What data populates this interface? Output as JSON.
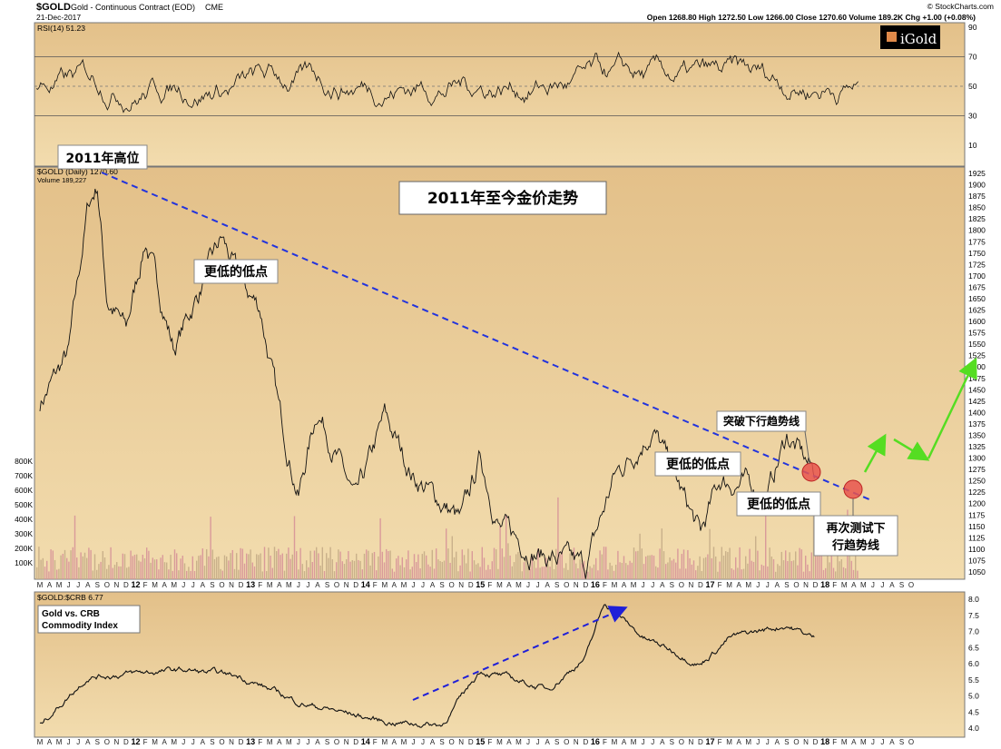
{
  "header": {
    "symbol": "$GOLD",
    "name": "Gold - Continuous Contract (EOD)",
    "exchange": "CME",
    "date": "21-Dec-2017",
    "watermark": "© StockCharts.com",
    "ohlc": "Open 1268.80  High 1272.50  Low 1266.00  Close 1270.60  Volume 189.2K  Chg +1.00 (+0.08%)",
    "logo_text": "iGold"
  },
  "rsi_panel": {
    "label": "RSI(14) 51.23",
    "ticks": [
      "90",
      "70",
      "50",
      "30",
      "10"
    ],
    "tick_values": [
      90,
      70,
      50,
      30,
      10
    ],
    "overbought": 70,
    "oversold": 30
  },
  "price_panel": {
    "label": "$GOLD (Daily) 1270.60",
    "volume_label": "Volume 189,227",
    "title": "2011年至今金价走势",
    "price_ticks": [
      1925,
      1900,
      1875,
      1850,
      1825,
      1800,
      1775,
      1750,
      1725,
      1700,
      1675,
      1650,
      1625,
      1600,
      1575,
      1550,
      1525,
      1500,
      1475,
      1450,
      1425,
      1400,
      1375,
      1350,
      1325,
      1300,
      1275,
      1250,
      1225,
      1200,
      1175,
      1150,
      1125,
      1100,
      1075,
      1050
    ],
    "price_ticks_text": [
      "1925",
      "1900",
      "1875",
      "1850",
      "1825",
      "1800",
      "1775",
      "1750",
      "1725",
      "1700",
      "1675",
      "1650",
      "1625",
      "1600",
      "1575",
      "1550",
      "1525",
      "1500",
      "1475",
      "1450",
      "1425",
      "1400",
      "1375",
      "1350",
      "1325",
      "1300",
      "1275",
      "1250",
      "1225",
      "1200",
      "1175",
      "1150",
      "1125",
      "1100",
      "1075",
      "1050"
    ],
    "volume_ticks": [
      "800K",
      "700K",
      "600K",
      "500K",
      "400K",
      "300K",
      "200K",
      "100K"
    ],
    "volume_tick_values": [
      800,
      700,
      600,
      500,
      400,
      300,
      200,
      100
    ],
    "annotations": {
      "high_2011": "2011年高位",
      "lower_low_1": "更低的低点",
      "lower_low_2": "更低的低点",
      "lower_low_3": "更低的低点",
      "breakout": "突破下行趋势线",
      "retest_line1": "再次测试下",
      "retest_line2": "行趋势线"
    }
  },
  "ratio_panel": {
    "label": "$GOLD:$CRB 6.77",
    "box_line1": "Gold vs. CRB",
    "box_line2": "Commodity Index",
    "ticks": [
      "8.0",
      "7.5",
      "7.0",
      "6.5",
      "6.0",
      "5.5",
      "5.0",
      "4.5",
      "4.0"
    ],
    "tick_values": [
      8.0,
      7.5,
      7.0,
      6.5,
      6.0,
      5.5,
      5.0,
      4.5,
      4.0
    ]
  },
  "x_axis": {
    "months": [
      "M",
      "A",
      "M",
      "J",
      "J",
      "A",
      "S",
      "O",
      "N",
      "D",
      "12",
      "F",
      "M",
      "A",
      "M",
      "J",
      "J",
      "A",
      "S",
      "O",
      "N",
      "D",
      "13",
      "F",
      "M",
      "A",
      "M",
      "J",
      "J",
      "A",
      "S",
      "O",
      "N",
      "D",
      "14",
      "F",
      "M",
      "A",
      "M",
      "J",
      "J",
      "A",
      "S",
      "O",
      "N",
      "D",
      "15",
      "F",
      "M",
      "A",
      "M",
      "J",
      "J",
      "A",
      "S",
      "O",
      "N",
      "D",
      "16",
      "F",
      "M",
      "A",
      "M",
      "J",
      "J",
      "A",
      "S",
      "O",
      "N",
      "D",
      "17",
      "F",
      "M",
      "A",
      "M",
      "J",
      "J",
      "A",
      "S",
      "O",
      "N",
      "D",
      "18",
      "F",
      "M",
      "A",
      "M",
      "J",
      "J",
      "A",
      "S",
      "O"
    ]
  },
  "chart_data": {
    "type": "line",
    "title": "2011年至今金价走势",
    "series": [
      {
        "name": "$GOLD",
        "x": [
          "2011-03",
          "2011-06",
          "2011-08",
          "2011-09",
          "2011-10",
          "2011-12",
          "2012-02",
          "2012-05",
          "2012-10",
          "2012-12",
          "2013-02",
          "2013-04",
          "2013-06",
          "2013-08",
          "2013-12",
          "2014-03",
          "2014-06",
          "2014-11",
          "2015-01",
          "2015-03",
          "2015-07",
          "2015-12",
          "2016-03",
          "2016-07",
          "2016-12",
          "2017-02",
          "2017-05",
          "2017-07",
          "2017-09",
          "2017-12"
        ],
        "values": [
          1420,
          1530,
          1850,
          1900,
          1650,
          1580,
          1780,
          1540,
          1780,
          1680,
          1630,
          1400,
          1220,
          1410,
          1200,
          1390,
          1260,
          1160,
          1300,
          1150,
          1090,
          1060,
          1260,
          1365,
          1130,
          1250,
          1240,
          1220,
          1350,
          1265
        ]
      },
      {
        "name": "$GOLD:$CRB",
        "x": [
          "2011-03",
          "2011-08",
          "2012-06",
          "2012-12",
          "2013-06",
          "2014-03",
          "2014-09",
          "2015-01",
          "2015-08",
          "2015-12",
          "2016-02",
          "2016-06",
          "2016-12",
          "2017-03",
          "2017-09",
          "2017-12"
        ],
        "values": [
          4.1,
          5.6,
          5.8,
          5.6,
          4.8,
          4.2,
          4.1,
          5.8,
          5.2,
          6.2,
          7.9,
          6.8,
          6.0,
          6.8,
          7.2,
          6.77
        ]
      }
    ],
    "trendline": {
      "start": [
        "2011-09",
        1900
      ],
      "end": [
        "2017-12",
        1215
      ]
    },
    "axes": {
      "price_ylim": [
        1050,
        1925
      ],
      "rsi_ylim": [
        10,
        90
      ],
      "ratio_ylim": [
        4.0,
        8.0
      ]
    }
  }
}
